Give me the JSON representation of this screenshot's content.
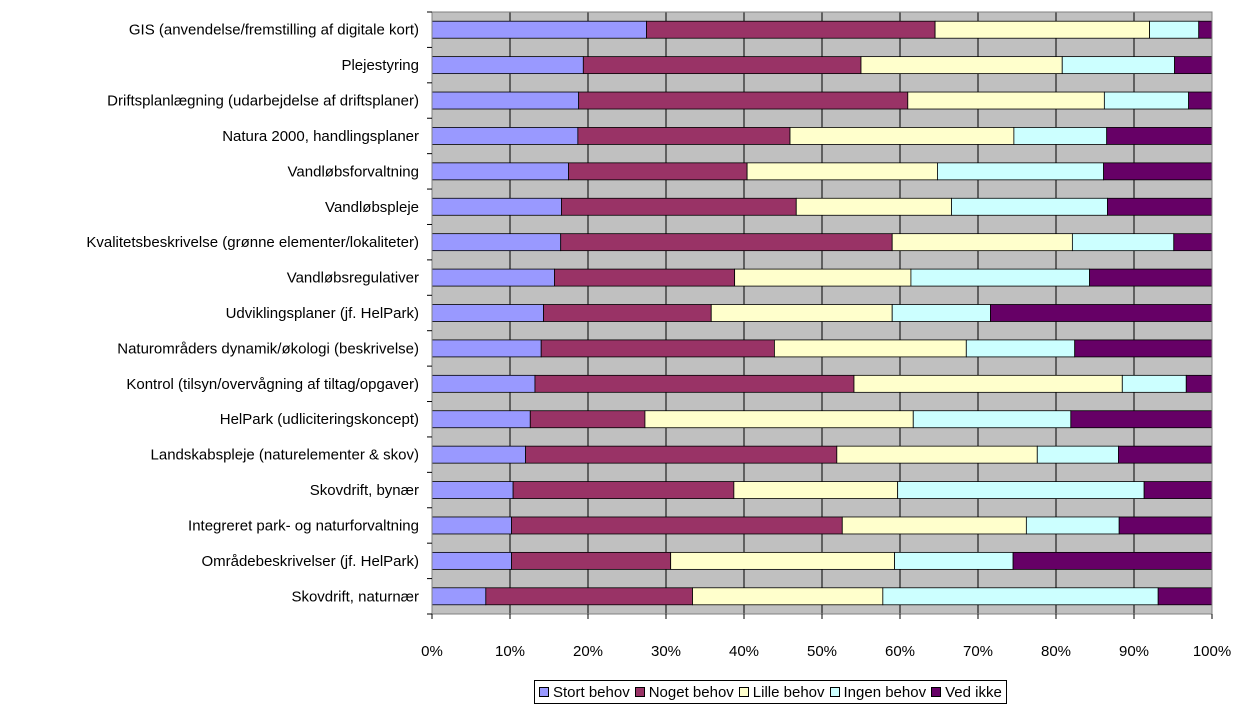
{
  "chart_data": {
    "type": "bar",
    "orientation": "horizontal",
    "stacked": "percent",
    "title": "",
    "xlabel": "",
    "ylabel": "",
    "xlim": [
      0,
      100
    ],
    "x_ticks": [
      "0%",
      "10%",
      "20%",
      "30%",
      "40%",
      "50%",
      "60%",
      "70%",
      "80%",
      "90%",
      "100%"
    ],
    "grid": true,
    "legend_position": "bottom",
    "categories": [
      "GIS (anvendelse/fremstilling af digitale kort)",
      "Plejestyring",
      "Driftsplanlægning (udarbejdelse af driftsplaner)",
      "Natura 2000, handlingsplaner",
      "Vandløbsforvaltning",
      "Vandløbspleje",
      "Kvalitetsbeskrivelse (grønne elementer/lokaliteter)",
      "Vandløbsregulativer",
      "Udviklingsplaner (jf. HelPark)",
      "Naturområders dynamik/økologi (beskrivelse)",
      "Kontrol (tilsyn/overvågning af tiltag/opgaver)",
      "HelPark (udliciteringskoncept)",
      "Landskabspleje (naturelementer & skov)",
      "Skovdrift, bynær",
      "Integreret park- og naturforvaltning",
      "Områdebeskrivelser (jf. HelPark)",
      "Skovdrift, naturnær"
    ],
    "series": [
      {
        "name": "Stort behov",
        "color": "#9999ff",
        "values": [
          27.5,
          19.4,
          18.8,
          18.7,
          17.5,
          16.6,
          16.5,
          15.7,
          14.3,
          14.0,
          13.2,
          12.6,
          12.0,
          10.4,
          10.2,
          10.2,
          6.9
        ]
      },
      {
        "name": "Noget behov",
        "color": "#993366",
        "values": [
          37.0,
          35.6,
          42.2,
          27.2,
          22.9,
          30.1,
          42.5,
          23.1,
          21.5,
          29.9,
          40.9,
          14.7,
          39.9,
          28.3,
          42.4,
          20.4,
          26.5
        ]
      },
      {
        "name": "Lille behov",
        "color": "#ffffcc",
        "values": [
          27.5,
          25.8,
          25.2,
          28.7,
          24.4,
          19.9,
          23.1,
          22.6,
          23.2,
          24.6,
          34.4,
          34.4,
          25.7,
          21.0,
          23.6,
          28.7,
          24.4
        ]
      },
      {
        "name": "Ingen behov",
        "color": "#ccffff",
        "values": [
          6.3,
          14.4,
          10.8,
          11.9,
          21.3,
          20.0,
          13.0,
          22.9,
          12.6,
          13.9,
          8.2,
          20.2,
          10.4,
          31.6,
          11.9,
          15.2,
          35.3
        ]
      },
      {
        "name": "Ved ikke",
        "color": "#660066",
        "values": [
          1.7,
          4.8,
          3.0,
          13.5,
          13.9,
          13.4,
          4.9,
          15.7,
          28.4,
          17.6,
          3.3,
          18.1,
          12.0,
          8.7,
          11.9,
          25.5,
          6.9
        ]
      }
    ],
    "plot_background": "#c0c0c0"
  }
}
